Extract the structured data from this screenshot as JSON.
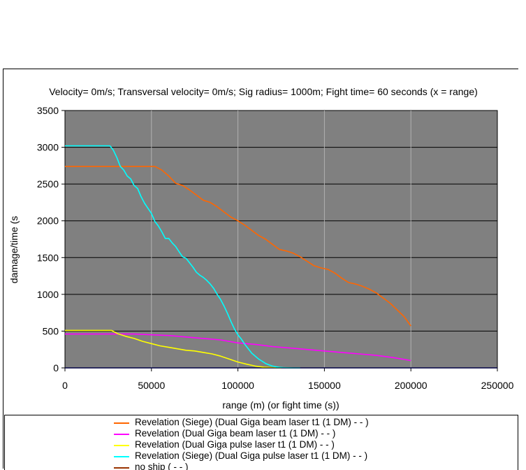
{
  "chart_data": {
    "type": "line",
    "title": "Velocity= 0m/s; Transversal velocity= 0m/s; Sig radius= 1000m; Fight time= 60 seconds (x = range)",
    "xlabel": "range (m) (or fight time (s))",
    "ylabel": "damage/time (s",
    "xlim": [
      0,
      250000
    ],
    "ylim": [
      0,
      3500
    ],
    "xticks": [
      0,
      50000,
      100000,
      150000,
      200000,
      250000
    ],
    "yticks": [
      0,
      500,
      1000,
      1500,
      2000,
      2500,
      3000,
      3500
    ],
    "grid": "vertical and horizontal major gridlines",
    "plot_background": "#808080",
    "legend_position": "bottom",
    "series": [
      {
        "name": "Revelation (Siege) (Dual Giga beam laser t1 (1 DM)  -  - )",
        "color": "#ff6600",
        "x": [
          0,
          52000,
          56000,
          60000,
          64000,
          68000,
          72000,
          76000,
          80000,
          84000,
          88000,
          92000,
          96000,
          100000,
          104000,
          108000,
          112000,
          116000,
          120000,
          124000,
          128000,
          132000,
          136000,
          140000,
          144000,
          148000,
          152000,
          156000,
          160000,
          164000,
          168000,
          172000,
          176000,
          180000,
          184000,
          188000,
          192000,
          196000,
          200000
        ],
        "y": [
          2740,
          2740,
          2690,
          2610,
          2510,
          2480,
          2420,
          2350,
          2280,
          2250,
          2190,
          2120,
          2050,
          2000,
          1940,
          1870,
          1800,
          1750,
          1680,
          1610,
          1590,
          1560,
          1510,
          1450,
          1390,
          1360,
          1340,
          1290,
          1220,
          1160,
          1140,
          1110,
          1070,
          1020,
          950,
          880,
          790,
          700,
          570
        ]
      },
      {
        "name": "Revelation (Dual Giga beam laser t1 (1 DM)  -  - )",
        "color": "#ff00ff",
        "x": [
          0,
          30000,
          40000,
          50000,
          60000,
          70000,
          80000,
          90000,
          100000,
          110000,
          120000,
          130000,
          140000,
          150000,
          160000,
          170000,
          180000,
          190000,
          200000
        ],
        "y": [
          460,
          460,
          460,
          450,
          440,
          420,
          400,
          380,
          340,
          320,
          290,
          270,
          250,
          230,
          210,
          190,
          170,
          140,
          100
        ]
      },
      {
        "name": "Revelation (Dual Giga pulse laser t1 (1 DM)  -  - )",
        "color": "#ffff00",
        "x": [
          0,
          27000,
          30000,
          35000,
          40000,
          45000,
          50000,
          55000,
          60000,
          65000,
          70000,
          75000,
          80000,
          85000,
          90000,
          95000,
          100000,
          105000,
          110000,
          115000,
          120000,
          125000
        ],
        "y": [
          510,
          510,
          470,
          430,
          400,
          360,
          330,
          300,
          280,
          260,
          240,
          230,
          210,
          190,
          160,
          120,
          80,
          50,
          25,
          10,
          3,
          0
        ]
      },
      {
        "name": "Revelation (Siege) (Dual Giga pulse laser t1 (1 DM)  -  - )",
        "color": "#00ffff",
        "x": [
          0,
          26000,
          28000,
          30000,
          32000,
          34000,
          36000,
          38000,
          40000,
          42000,
          44000,
          46000,
          48000,
          50000,
          52000,
          54000,
          56000,
          58000,
          60000,
          62000,
          64000,
          66000,
          68000,
          70000,
          72000,
          74000,
          76000,
          78000,
          80000,
          82000,
          84000,
          86000,
          88000,
          90000,
          92000,
          94000,
          96000,
          98000,
          100000,
          102000,
          104000,
          106000,
          108000,
          110000,
          112000,
          114000,
          116000,
          118000,
          120000,
          122000,
          124000,
          126000,
          128000,
          130000,
          132000,
          134000,
          136000
        ],
        "y": [
          3020,
          3020,
          2960,
          2860,
          2740,
          2690,
          2610,
          2570,
          2480,
          2440,
          2330,
          2240,
          2170,
          2100,
          1990,
          1930,
          1850,
          1760,
          1760,
          1700,
          1650,
          1580,
          1510,
          1490,
          1430,
          1370,
          1300,
          1260,
          1230,
          1190,
          1140,
          1080,
          1000,
          930,
          840,
          740,
          630,
          530,
          450,
          390,
          320,
          260,
          200,
          160,
          120,
          90,
          60,
          40,
          25,
          15,
          8,
          4,
          2,
          1,
          0,
          0,
          0
        ]
      },
      {
        "name": "no ship (  -  - )",
        "color": "#993300",
        "x": [
          0,
          250000
        ],
        "y": [
          0,
          0
        ]
      }
    ],
    "baseline_line": {
      "color": "#0000cc",
      "x": [
        0,
        250000
      ],
      "y": [
        0,
        0
      ]
    }
  }
}
